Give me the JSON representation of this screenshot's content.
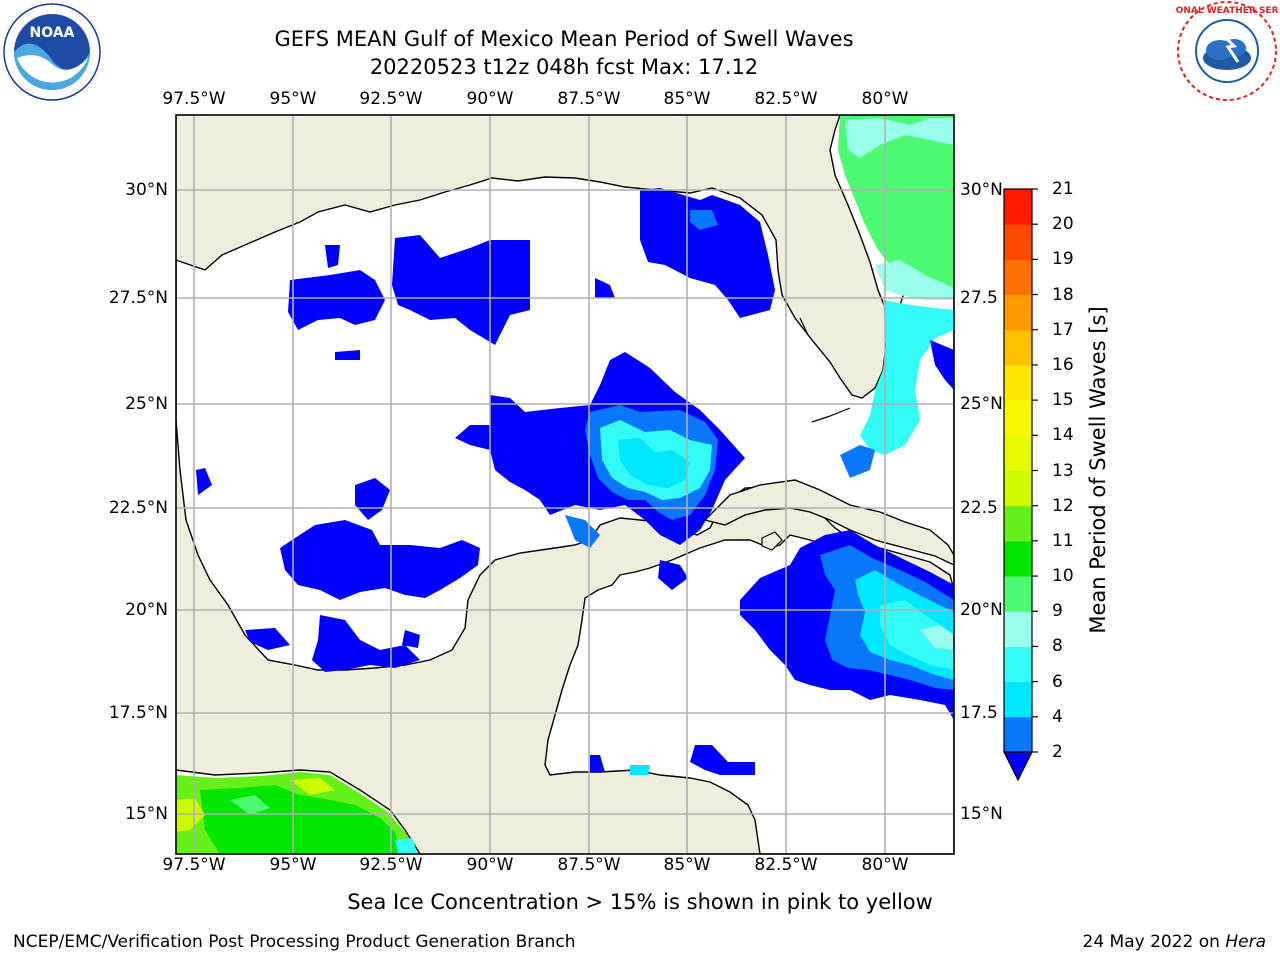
{
  "header": {
    "title_line1": "GEFS MEAN Gulf of Mexico Mean Period of Swell Waves",
    "title_line2": "20220523 t12z 048h fcst    Max: 17.12"
  },
  "map": {
    "region": "Gulf of Mexico",
    "lon_ticks": [
      "97.5°W",
      "95°W",
      "92.5°W",
      "90°W",
      "87.5°W",
      "85°W",
      "82.5°W",
      "80°W"
    ],
    "lat_ticks_left": [
      "30°N",
      "27.5°N",
      "25°N",
      "22.5°N",
      "20°N",
      "17.5°N",
      "15°N"
    ],
    "lat_ticks_right": [
      "30°N",
      "27.5",
      "25°N",
      "22.5",
      "20°N",
      "17.5",
      "15°N"
    ],
    "land_color": "#efeedc",
    "water_color": "#ffffff",
    "gridlines": true
  },
  "colorbar": {
    "label": "Mean Period of Swell Waves [s]",
    "ticks": [
      "21",
      "20",
      "19",
      "18",
      "17",
      "16",
      "15",
      "14",
      "13",
      "12",
      "11",
      "10",
      "9",
      "8",
      "6",
      "4",
      "2"
    ],
    "bins": [
      {
        "range": "2-4",
        "color": "#0a77ff"
      },
      {
        "range": "4-6",
        "color": "#00e8ff"
      },
      {
        "range": "6-8",
        "color": "#33fbf6"
      },
      {
        "range": "8-9",
        "color": "#99ffec"
      },
      {
        "range": "9-10",
        "color": "#4dfb73"
      },
      {
        "range": "10-11",
        "color": "#00e600"
      },
      {
        "range": "11-12",
        "color": "#66f01a"
      },
      {
        "range": "12-13",
        "color": "#ccfa00"
      },
      {
        "range": "13-14",
        "color": "#e6fb00"
      },
      {
        "range": "14-15",
        "color": "#f8f800"
      },
      {
        "range": "15-16",
        "color": "#ffe600"
      },
      {
        "range": "16-17",
        "color": "#ffc000"
      },
      {
        "range": "17-18",
        "color": "#ff9800"
      },
      {
        "range": "18-19",
        "color": "#ff7000"
      },
      {
        "range": "19-20",
        "color": "#ff4800"
      },
      {
        "range": "20-21",
        "color": "#ff1a00"
      }
    ],
    "under_color": "#0000ff"
  },
  "note": "Sea Ice Concentration > 15% is shown in pink to yellow",
  "footer": {
    "left": "NCEP/EMC/Verification Post Processing Product Generation Branch",
    "right_prefix": "24 May 2022 on ",
    "right_italic": "Hera"
  },
  "logos": {
    "left": {
      "name": "NOAA",
      "ring_text": "NATIONAL OCEANIC AND ATMOSPHERIC ADMINISTRATION · U.S. DEPARTMENT OF COMMERCE"
    },
    "right": {
      "name": "NATIONAL WEATHER SERVICE"
    }
  }
}
